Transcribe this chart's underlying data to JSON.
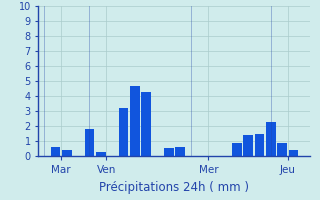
{
  "values": [
    0,
    0.6,
    0.4,
    0,
    1.8,
    0.3,
    0,
    3.2,
    4.7,
    4.3,
    0,
    0.55,
    0.6,
    0,
    0,
    0,
    0,
    0.9,
    1.4,
    1.5,
    2.3,
    0.9,
    0.4,
    0
  ],
  "bar_color": "#1155dd",
  "background_color": "#d0ecec",
  "grid_color": "#aacccc",
  "axis_color": "#2244aa",
  "tick_label_color": "#2244aa",
  "xlabel": "Précipitations 24h ( mm )",
  "xlabel_color": "#2244aa",
  "xlabel_fontsize": 8.5,
  "ylim": [
    0,
    10
  ],
  "yticks": [
    0,
    1,
    2,
    3,
    4,
    5,
    6,
    7,
    8,
    9,
    10
  ],
  "ytick_fontsize": 7,
  "day_labels": [
    "Mar",
    "Ven",
    "Mer",
    "Jeu"
  ],
  "day_positions": [
    1.5,
    5.5,
    14.5,
    21.5
  ],
  "n_bars": 24,
  "bar_width": 0.85,
  "figsize": [
    3.2,
    2.0
  ],
  "dpi": 100
}
